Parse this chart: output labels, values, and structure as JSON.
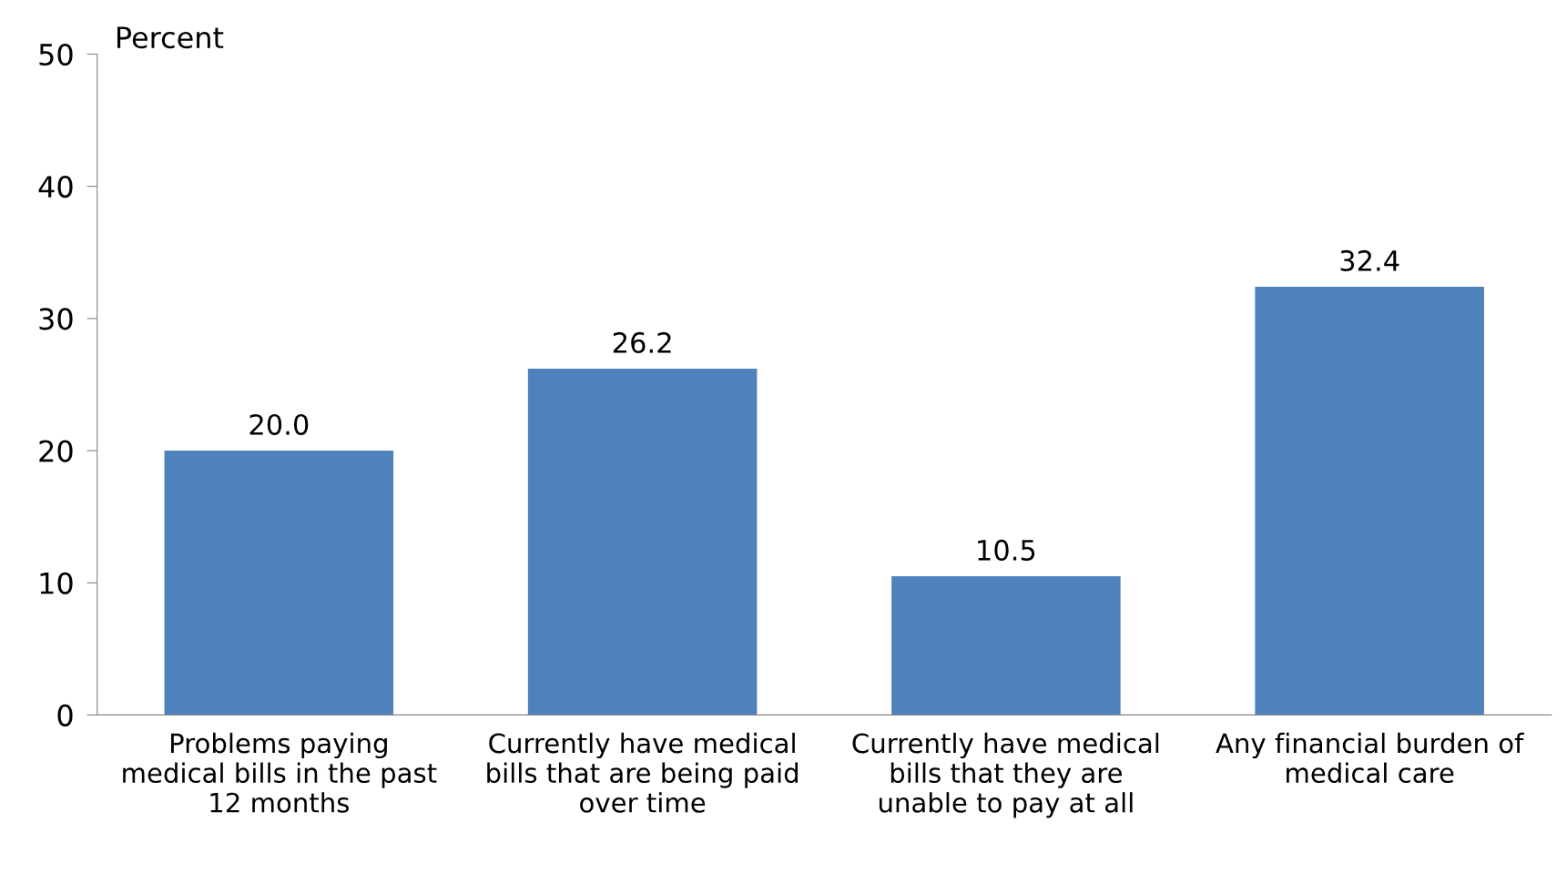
{
  "chart_data": {
    "type": "bar",
    "ylabel": "Percent",
    "categories": [
      "Problems paying\nmedical bills in the past\n12 months",
      "Currently have medical\nbills that are being paid\nover time",
      "Currently have medical\nbills that they are\nunable to pay at all",
      "Any financial burden of\nmedical care"
    ],
    "values": [
      20.0,
      26.2,
      10.5,
      32.4
    ],
    "value_labels": [
      "20.0",
      "26.2",
      "10.5",
      "32.4"
    ],
    "color": "#4f81bd",
    "ylim": [
      0,
      50
    ],
    "yticks": [
      0,
      10,
      20,
      30,
      40,
      50
    ],
    "grid": false,
    "legend": false
  }
}
